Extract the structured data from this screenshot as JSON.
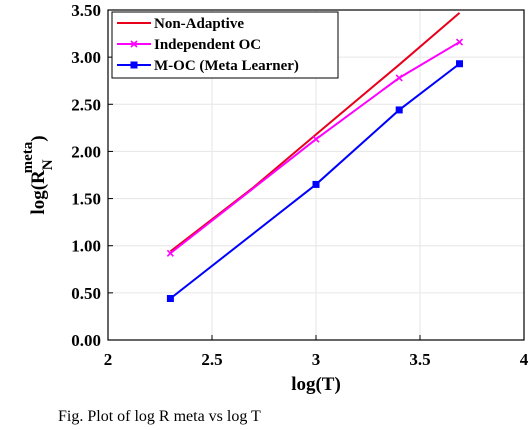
{
  "chart_data": {
    "type": "line",
    "xlabel": "log(T)",
    "ylabel_prefix": "log(R",
    "ylabel_sup": "meta",
    "ylabel_sub": "N",
    "ylabel_suffix": ")",
    "xlim": [
      2,
      4
    ],
    "ylim": [
      0,
      3.5
    ],
    "xticks": [
      "2",
      "2.5",
      "3",
      "3.5",
      "4"
    ],
    "yticks": [
      "0.00",
      "0.50",
      "1.00",
      "1.50",
      "2.00",
      "2.50",
      "3.00",
      "3.50"
    ],
    "grid": true,
    "legend_position": "top-left",
    "series": [
      {
        "name": "Non-Adaptive",
        "color": "#e8001c",
        "marker": "none",
        "x": [
          2.3,
          2.7,
          3.0,
          3.4,
          3.69
        ],
        "y": [
          0.94,
          1.62,
          2.18,
          2.92,
          3.47
        ]
      },
      {
        "name": "Independent OC",
        "color": "#ff00ff",
        "marker": "x",
        "x": [
          2.3,
          3.0,
          3.4,
          3.69
        ],
        "y": [
          0.92,
          2.13,
          2.78,
          3.16
        ]
      },
      {
        "name": "M-OC (Meta Learner)",
        "color": "#0000ff",
        "marker": "square",
        "x": [
          2.3,
          3.0,
          3.4,
          3.69
        ],
        "y": [
          0.44,
          1.65,
          2.44,
          2.93
        ]
      }
    ]
  },
  "caption": "Fig. Plot of log R meta vs log T"
}
